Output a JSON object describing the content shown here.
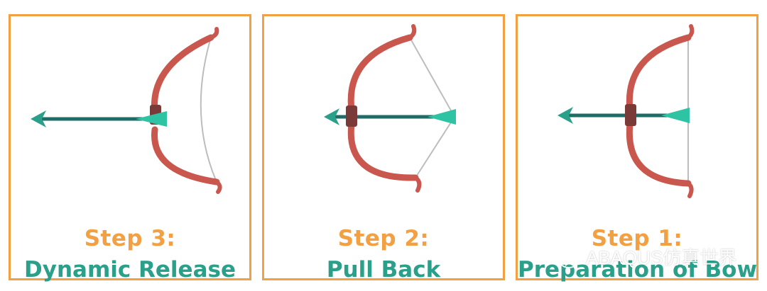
{
  "colors": {
    "border": "#f2a041",
    "bow": "#c9574e",
    "grip": "#7a3a38",
    "arrow_shaft": "#1f6b66",
    "arrow_head": "#2aa08b",
    "fletching": "#2ec4a3",
    "string": "#bdbdbd",
    "step_title": "#f2a041",
    "step_name": "#2aa08b"
  },
  "panels": [
    {
      "step": "Step 3:",
      "name": "Dynamic Release",
      "state": "released"
    },
    {
      "step": "Step 2:",
      "name": "Pull Back",
      "state": "drawn"
    },
    {
      "step": "Step 1:",
      "name": "Preparation of Bow",
      "state": "rest"
    }
  ],
  "watermark": {
    "icon": "wechat-icon",
    "text": "ABAQUS仿真世界"
  }
}
